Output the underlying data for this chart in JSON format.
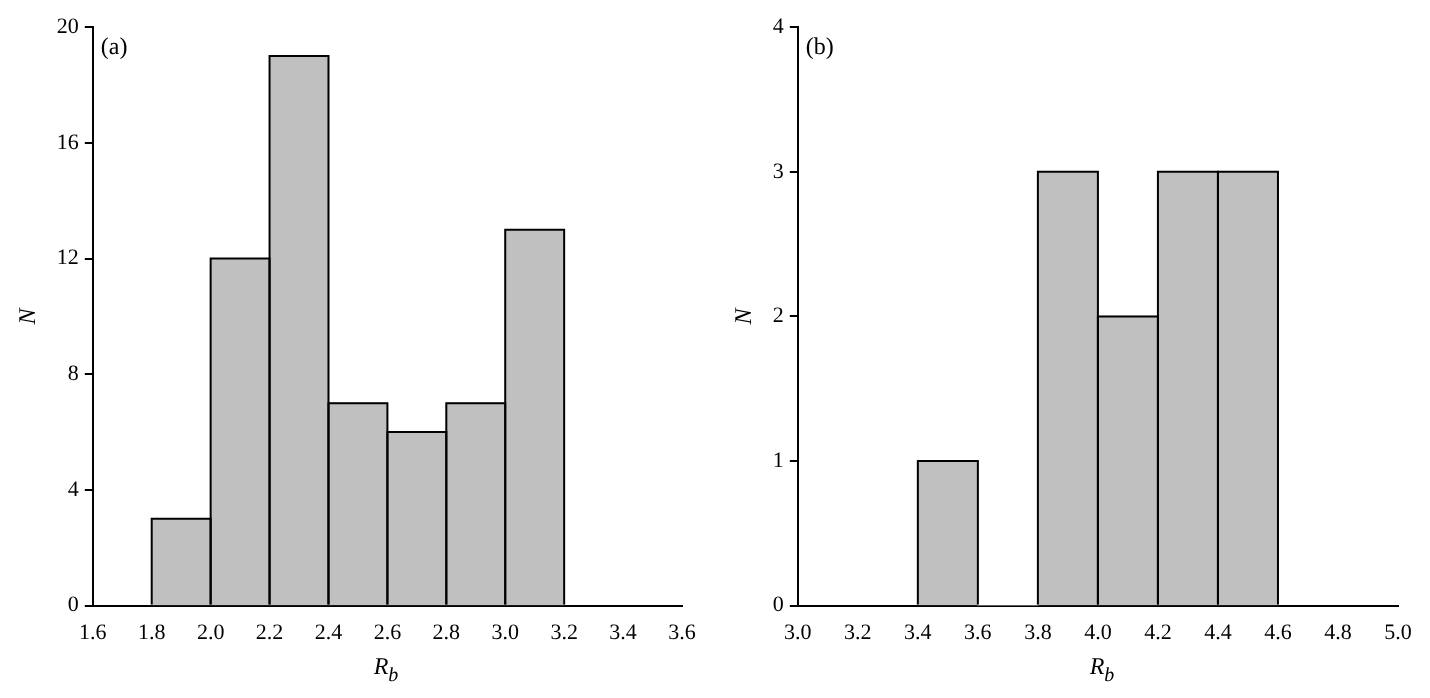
{
  "chart_data": [
    {
      "type": "histogram",
      "bins": [
        1.8,
        2.0,
        2.2,
        2.4,
        2.6,
        2.8,
        3.0,
        3.2
      ],
      "values": [
        3,
        12,
        19,
        7,
        6,
        7,
        13
      ],
      "color": "#c0c0c0",
      "xlim": [
        1.6,
        3.6
      ],
      "xticks": [
        1.6,
        1.8,
        {
          "value": 2,
          "label": "2.0"
        },
        2.2,
        2.4,
        2.6,
        2.8,
        {
          "value": 3,
          "label": "3.0"
        },
        3.2,
        3.4,
        3.6
      ],
      "ylim": [
        0,
        20
      ],
      "yticks": [
        0,
        4,
        8,
        12,
        16,
        20
      ],
      "xlabel": "R$_{b}$",
      "ylabel": "N",
      "annotations": [
        "(a)"
      ]
    },
    {
      "type": "histogram",
      "bins": [
        3.4,
        3.6,
        3.8,
        4.0,
        4.2,
        4.4,
        4.6
      ],
      "values": [
        1,
        0,
        3,
        2,
        3,
        3
      ],
      "color": "#c0c0c0",
      "xlim": [
        3,
        5
      ],
      "xticks": [
        {
          "value": 3,
          "label": "3.0"
        },
        3.2,
        3.4,
        3.6,
        3.8,
        {
          "value": 4,
          "label": "4.0"
        },
        4.2,
        4.4,
        4.6,
        4.8,
        {
          "value": 5,
          "label": "5.0"
        }
      ],
      "ylim": [
        0,
        4
      ],
      "yticks": [
        0,
        1,
        2,
        3,
        4
      ],
      "xlabel": "R$_{b}$",
      "ylabel": "N",
      "annotations": [
        "(b)"
      ]
    }
  ]
}
